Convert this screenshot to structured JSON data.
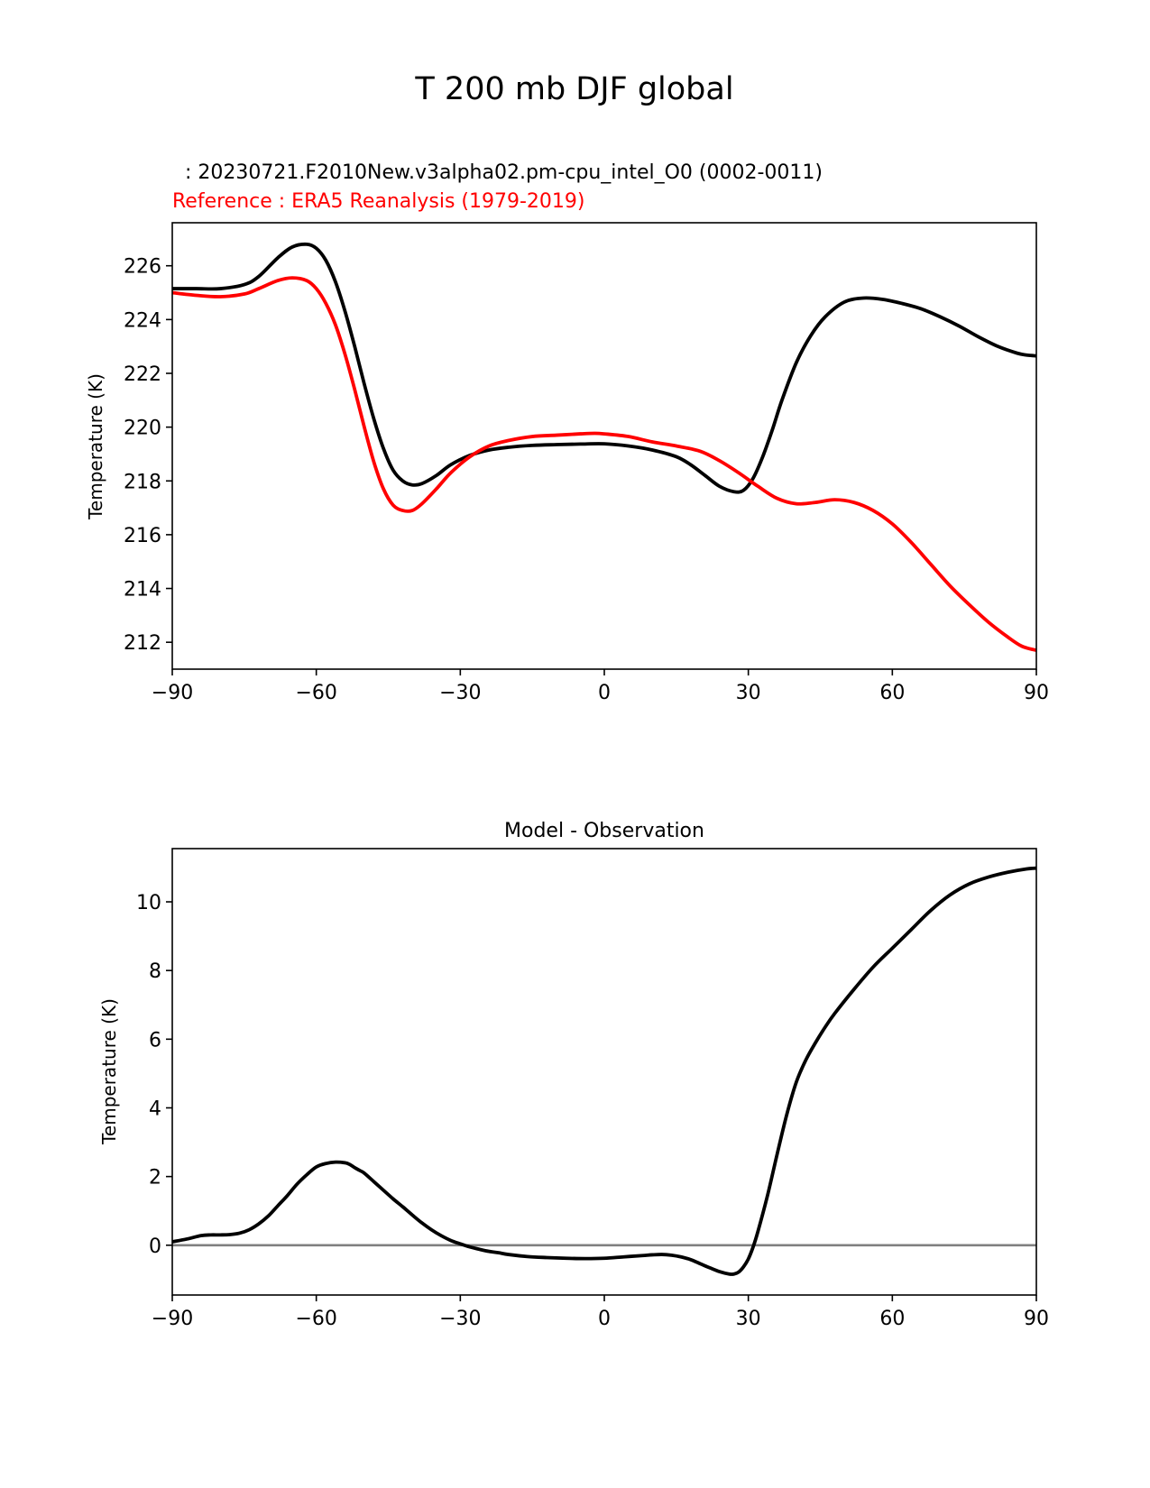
{
  "figure": {
    "suptitle": "T 200 mb DJF global",
    "test_label": "  : 20230721.F2010New.v3alpha02.pm-cpu_intel_O0 (0002-0011)",
    "ref_label": "Reference : ERA5 Reanalysis (1979-2019)",
    "test_color": "#000000",
    "ref_color": "#ff0000",
    "zero_line_color": "#808080"
  },
  "chart_data": [
    {
      "type": "line",
      "title": "",
      "xlabel": "",
      "ylabel": "Temperature (K)",
      "xlim": [
        -90,
        90
      ],
      "ylim": [
        211,
        227.6
      ],
      "xticks": [
        -90,
        -60,
        -30,
        0,
        30,
        60,
        90
      ],
      "xtick_labels": [
        "−90",
        "−60",
        "−30",
        "0",
        "30",
        "60",
        "90"
      ],
      "yticks": [
        212,
        214,
        216,
        218,
        220,
        222,
        224,
        226
      ],
      "ytick_labels": [
        "212",
        "214",
        "216",
        "218",
        "220",
        "222",
        "224",
        "226"
      ],
      "series": [
        {
          "name": "test",
          "color": "#000000",
          "x": [
            -90,
            -85,
            -80,
            -75,
            -72,
            -68,
            -65,
            -62,
            -60,
            -58,
            -56,
            -54,
            -52,
            -50,
            -48,
            -46,
            -44,
            -42,
            -40,
            -38,
            -35,
            -32,
            -28,
            -24,
            -20,
            -15,
            -10,
            -5,
            0,
            5,
            10,
            15,
            18,
            21,
            24,
            27,
            29,
            31,
            33,
            35,
            37,
            40,
            43,
            46,
            50,
            54,
            58,
            62,
            66,
            70,
            74,
            78,
            82,
            86,
            88,
            90
          ],
          "values": [
            225.15,
            225.15,
            225.15,
            225.3,
            225.6,
            226.3,
            226.7,
            226.8,
            226.65,
            226.2,
            225.4,
            224.3,
            223.0,
            221.6,
            220.3,
            219.2,
            218.4,
            218.0,
            217.85,
            217.9,
            218.2,
            218.6,
            218.95,
            219.15,
            219.25,
            219.32,
            219.35,
            219.37,
            219.38,
            219.3,
            219.15,
            218.9,
            218.6,
            218.2,
            217.8,
            217.6,
            217.65,
            218.1,
            218.9,
            219.9,
            221.0,
            222.4,
            223.4,
            224.1,
            224.65,
            224.8,
            224.75,
            224.6,
            224.4,
            224.1,
            223.75,
            223.35,
            223.0,
            222.75,
            222.68,
            222.65
          ]
        },
        {
          "name": "reference",
          "color": "#ff0000",
          "x": [
            -90,
            -85,
            -80,
            -75,
            -72,
            -68,
            -65,
            -62,
            -60,
            -58,
            -56,
            -54,
            -52,
            -50,
            -48,
            -46,
            -44,
            -42,
            -40,
            -38,
            -35,
            -32,
            -28,
            -24,
            -20,
            -15,
            -10,
            -5,
            -2,
            0,
            5,
            10,
            15,
            20,
            24,
            28,
            32,
            36,
            40,
            44,
            48,
            52,
            56,
            60,
            64,
            68,
            72,
            76,
            80,
            84,
            87,
            90
          ],
          "values": [
            225.0,
            224.9,
            224.85,
            224.95,
            225.15,
            225.45,
            225.55,
            225.45,
            225.15,
            224.6,
            223.8,
            222.7,
            221.4,
            220.0,
            218.7,
            217.7,
            217.1,
            216.9,
            216.9,
            217.15,
            217.7,
            218.3,
            218.9,
            219.3,
            219.5,
            219.65,
            219.7,
            219.75,
            219.77,
            219.75,
            219.65,
            219.45,
            219.3,
            219.1,
            218.75,
            218.3,
            217.8,
            217.35,
            217.15,
            217.2,
            217.3,
            217.2,
            216.9,
            216.4,
            215.7,
            214.9,
            214.1,
            213.4,
            212.75,
            212.2,
            211.85,
            211.7
          ]
        }
      ]
    },
    {
      "type": "line",
      "title": "Model - Observation",
      "xlabel": "",
      "ylabel": "Temperature (K)",
      "xlim": [
        -90,
        90
      ],
      "ylim": [
        -1.45,
        11.55
      ],
      "xticks": [
        -90,
        -60,
        -30,
        0,
        30,
        60,
        90
      ],
      "xtick_labels": [
        "−90",
        "−60",
        "−30",
        "0",
        "30",
        "60",
        "90"
      ],
      "yticks": [
        0,
        2,
        4,
        6,
        8,
        10
      ],
      "ytick_labels": [
        "0",
        "2",
        "4",
        "6",
        "8",
        "10"
      ],
      "hline": 0,
      "series": [
        {
          "name": "difference",
          "color": "#000000",
          "x": [
            -90,
            -87,
            -84,
            -82,
            -80,
            -78,
            -76,
            -74,
            -72,
            -70,
            -68,
            -66,
            -64,
            -62,
            -60,
            -58,
            -56,
            -54,
            -53,
            -52,
            -51,
            -50,
            -48,
            -46,
            -44,
            -42,
            -40,
            -38,
            -36,
            -34,
            -32,
            -30,
            -28,
            -26,
            -24,
            -22,
            -20,
            -16,
            -12,
            -8,
            -4,
            0,
            4,
            8,
            10,
            12,
            14,
            16,
            18,
            20,
            22,
            24,
            26,
            27,
            28,
            29,
            30,
            31,
            32,
            34,
            36,
            38,
            40,
            42,
            44,
            46,
            48,
            52,
            56,
            60,
            64,
            68,
            72,
            76,
            80,
            84,
            88,
            90
          ],
          "values": [
            0.1,
            0.18,
            0.28,
            0.3,
            0.3,
            0.31,
            0.35,
            0.45,
            0.62,
            0.85,
            1.15,
            1.45,
            1.78,
            2.05,
            2.28,
            2.38,
            2.42,
            2.4,
            2.35,
            2.26,
            2.18,
            2.1,
            1.85,
            1.6,
            1.35,
            1.12,
            0.88,
            0.65,
            0.45,
            0.28,
            0.14,
            0.04,
            -0.05,
            -0.12,
            -0.18,
            -0.22,
            -0.27,
            -0.33,
            -0.36,
            -0.38,
            -0.39,
            -0.38,
            -0.34,
            -0.3,
            -0.28,
            -0.27,
            -0.29,
            -0.34,
            -0.42,
            -0.54,
            -0.66,
            -0.77,
            -0.84,
            -0.84,
            -0.78,
            -0.63,
            -0.4,
            -0.05,
            0.4,
            1.45,
            2.65,
            3.8,
            4.75,
            5.4,
            5.9,
            6.35,
            6.75,
            7.45,
            8.1,
            8.65,
            9.2,
            9.75,
            10.2,
            10.52,
            10.72,
            10.86,
            10.96,
            10.98
          ]
        }
      ]
    }
  ]
}
